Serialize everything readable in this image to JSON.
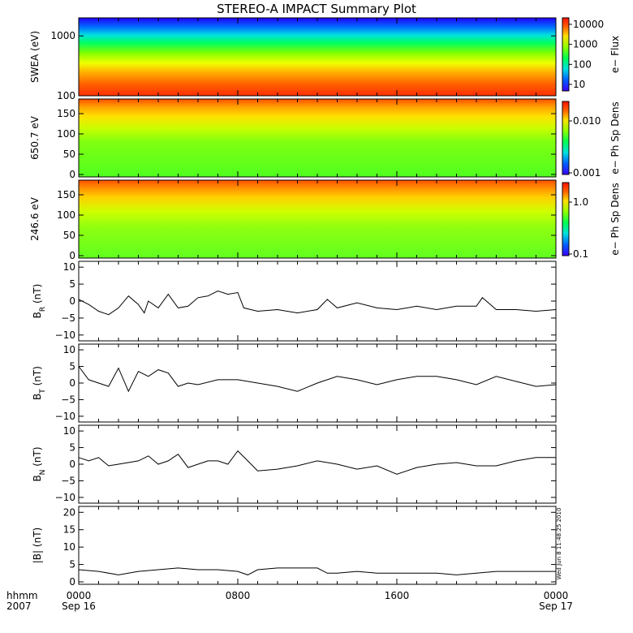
{
  "chart_data": {
    "title": "STEREO-A IMPACT Summary Plot",
    "timestamp": "Wed Jun  8 11:48:25 2010",
    "x_axis": {
      "ticks": [
        {
          "label": "0000",
          "sub": "Sep 16",
          "hour": 0
        },
        {
          "label": "0800",
          "sub": "",
          "hour": 8
        },
        {
          "label": "1600",
          "sub": "",
          "hour": 16
        },
        {
          "label": "0000",
          "sub": "Sep 17",
          "hour": 24
        }
      ],
      "left_label_1": "hhmm",
      "left_label_2": "2007",
      "range_hours": [
        0,
        24
      ]
    },
    "panels": [
      {
        "id": "swea",
        "type": "heatmap",
        "ylabel": "SWEA (eV)",
        "yscale": "log",
        "ylim": [
          100,
          2000
        ],
        "yticks": [
          "1000",
          "100"
        ],
        "colorbar_label": "e−  Flux",
        "colorbar_ticks": [
          "10000",
          "1000",
          "100",
          "10"
        ]
      },
      {
        "id": "pad650",
        "type": "heatmap",
        "ylabel": "650.7 eV",
        "ylim": [
          0,
          180
        ],
        "yticks": [
          "150",
          "100",
          "50",
          "0"
        ],
        "colorbar_label": "e−  Ph Sp Dens",
        "colorbar_ticks": [
          "0.010",
          "0.001"
        ]
      },
      {
        "id": "pad246",
        "type": "heatmap",
        "ylabel": "246.6 eV",
        "ylim": [
          0,
          180
        ],
        "yticks": [
          "150",
          "100",
          "50",
          "0"
        ],
        "colorbar_label": "e−  Ph Sp Dens",
        "colorbar_ticks": [
          "1.0",
          "0.1"
        ]
      },
      {
        "id": "br",
        "type": "line",
        "ylabel_main": "B",
        "ylabel_sub": "R",
        "ylabel_unit": " (nT)",
        "ylim": [
          -11,
          11
        ],
        "yticks": [
          "10",
          "5",
          "0",
          "−5",
          "−10"
        ],
        "series": [
          {
            "hour": 0,
            "v": 0.5
          },
          {
            "hour": 0.5,
            "v": -1
          },
          {
            "hour": 1,
            "v": -3
          },
          {
            "hour": 1.5,
            "v": -4
          },
          {
            "hour": 2,
            "v": -2
          },
          {
            "hour": 2.5,
            "v": 1.5
          },
          {
            "hour": 3,
            "v": -1
          },
          {
            "hour": 3.3,
            "v": -3.5
          },
          {
            "hour": 3.5,
            "v": 0
          },
          {
            "hour": 4,
            "v": -2
          },
          {
            "hour": 4.5,
            "v": 2
          },
          {
            "hour": 5,
            "v": -2
          },
          {
            "hour": 5.5,
            "v": -1.5
          },
          {
            "hour": 6,
            "v": 1
          },
          {
            "hour": 6.5,
            "v": 1.5
          },
          {
            "hour": 7,
            "v": 3
          },
          {
            "hour": 7.5,
            "v": 2
          },
          {
            "hour": 8,
            "v": 2.5
          },
          {
            "hour": 8.3,
            "v": -2
          },
          {
            "hour": 9,
            "v": -3
          },
          {
            "hour": 10,
            "v": -2.5
          },
          {
            "hour": 11,
            "v": -3.5
          },
          {
            "hour": 12,
            "v": -2.5
          },
          {
            "hour": 12.5,
            "v": 0.5
          },
          {
            "hour": 13,
            "v": -2
          },
          {
            "hour": 14,
            "v": -0.5
          },
          {
            "hour": 15,
            "v": -2
          },
          {
            "hour": 16,
            "v": -2.5
          },
          {
            "hour": 17,
            "v": -1.5
          },
          {
            "hour": 18,
            "v": -2.5
          },
          {
            "hour": 19,
            "v": -1.5
          },
          {
            "hour": 20,
            "v": -1.5
          },
          {
            "hour": 20.3,
            "v": 1
          },
          {
            "hour": 21,
            "v": -2.5
          },
          {
            "hour": 22,
            "v": -2.5
          },
          {
            "hour": 23,
            "v": -3
          },
          {
            "hour": 24,
            "v": -2.5
          }
        ]
      },
      {
        "id": "bt",
        "type": "line",
        "ylabel_main": "B",
        "ylabel_sub": "T",
        "ylabel_unit": " (nT)",
        "ylim": [
          -11,
          11
        ],
        "yticks": [
          "10",
          "5",
          "0",
          "−5",
          "−10"
        ],
        "series": [
          {
            "hour": 0,
            "v": 5
          },
          {
            "hour": 0.5,
            "v": 1
          },
          {
            "hour": 1,
            "v": 0
          },
          {
            "hour": 1.5,
            "v": -1
          },
          {
            "hour": 2,
            "v": 4.5
          },
          {
            "hour": 2.5,
            "v": -2.5
          },
          {
            "hour": 3,
            "v": 3.5
          },
          {
            "hour": 3.5,
            "v": 2
          },
          {
            "hour": 4,
            "v": 4
          },
          {
            "hour": 4.5,
            "v": 3
          },
          {
            "hour": 5,
            "v": -1
          },
          {
            "hour": 5.5,
            "v": 0
          },
          {
            "hour": 6,
            "v": -0.5
          },
          {
            "hour": 7,
            "v": 1
          },
          {
            "hour": 8,
            "v": 1
          },
          {
            "hour": 9,
            "v": 0
          },
          {
            "hour": 10,
            "v": -1
          },
          {
            "hour": 11,
            "v": -2.5
          },
          {
            "hour": 12,
            "v": 0
          },
          {
            "hour": 13,
            "v": 2
          },
          {
            "hour": 14,
            "v": 1
          },
          {
            "hour": 15,
            "v": -0.5
          },
          {
            "hour": 16,
            "v": 1
          },
          {
            "hour": 17,
            "v": 2
          },
          {
            "hour": 18,
            "v": 2
          },
          {
            "hour": 19,
            "v": 1
          },
          {
            "hour": 20,
            "v": -0.5
          },
          {
            "hour": 21,
            "v": 2
          },
          {
            "hour": 22,
            "v": 0.5
          },
          {
            "hour": 23,
            "v": -1
          },
          {
            "hour": 24,
            "v": -0.5
          }
        ]
      },
      {
        "id": "bn",
        "type": "line",
        "ylabel_main": "B",
        "ylabel_sub": "N",
        "ylabel_unit": " (nT)",
        "ylim": [
          -11,
          11
        ],
        "yticks": [
          "10",
          "5",
          "0",
          "−5",
          "−10"
        ],
        "series": [
          {
            "hour": 0,
            "v": 2
          },
          {
            "hour": 0.5,
            "v": 1
          },
          {
            "hour": 1,
            "v": 2
          },
          {
            "hour": 1.5,
            "v": -0.5
          },
          {
            "hour": 2,
            "v": 0
          },
          {
            "hour": 3,
            "v": 1
          },
          {
            "hour": 3.5,
            "v": 2.5
          },
          {
            "hour": 4,
            "v": 0
          },
          {
            "hour": 4.5,
            "v": 1
          },
          {
            "hour": 5,
            "v": 3
          },
          {
            "hour": 5.5,
            "v": -1
          },
          {
            "hour": 6,
            "v": 0
          },
          {
            "hour": 6.5,
            "v": 1
          },
          {
            "hour": 7,
            "v": 1
          },
          {
            "hour": 7.5,
            "v": 0
          },
          {
            "hour": 8,
            "v": 4
          },
          {
            "hour": 8.5,
            "v": 1
          },
          {
            "hour": 9,
            "v": -2
          },
          {
            "hour": 10,
            "v": -1.5
          },
          {
            "hour": 11,
            "v": -0.5
          },
          {
            "hour": 12,
            "v": 1
          },
          {
            "hour": 13,
            "v": 0
          },
          {
            "hour": 14,
            "v": -1.5
          },
          {
            "hour": 15,
            "v": -0.5
          },
          {
            "hour": 16,
            "v": -3
          },
          {
            "hour": 17,
            "v": -1
          },
          {
            "hour": 18,
            "v": 0
          },
          {
            "hour": 19,
            "v": 0.5
          },
          {
            "hour": 20,
            "v": -0.5
          },
          {
            "hour": 21,
            "v": -0.5
          },
          {
            "hour": 22,
            "v": 1
          },
          {
            "hour": 23,
            "v": 2
          },
          {
            "hour": 24,
            "v": 2
          }
        ]
      },
      {
        "id": "bmag",
        "type": "line",
        "ylabel_main": "|B|",
        "ylabel_sub": "",
        "ylabel_unit": " (nT)",
        "ylim": [
          0,
          21
        ],
        "yticks": [
          "20",
          "15",
          "10",
          "5",
          "0"
        ],
        "series": [
          {
            "hour": 0,
            "v": 3.5
          },
          {
            "hour": 1,
            "v": 3
          },
          {
            "hour": 2,
            "v": 2
          },
          {
            "hour": 3,
            "v": 3
          },
          {
            "hour": 4,
            "v": 3.5
          },
          {
            "hour": 5,
            "v": 4
          },
          {
            "hour": 6,
            "v": 3.5
          },
          {
            "hour": 7,
            "v": 3.5
          },
          {
            "hour": 8,
            "v": 3
          },
          {
            "hour": 8.5,
            "v": 2
          },
          {
            "hour": 9,
            "v": 3.5
          },
          {
            "hour": 10,
            "v": 4
          },
          {
            "hour": 11,
            "v": 4
          },
          {
            "hour": 12,
            "v": 4
          },
          {
            "hour": 12.5,
            "v": 2.5
          },
          {
            "hour": 13,
            "v": 2.5
          },
          {
            "hour": 14,
            "v": 3
          },
          {
            "hour": 15,
            "v": 2.5
          },
          {
            "hour": 16,
            "v": 2.5
          },
          {
            "hour": 17,
            "v": 2.5
          },
          {
            "hour": 18,
            "v": 2.5
          },
          {
            "hour": 19,
            "v": 2
          },
          {
            "hour": 20,
            "v": 2.5
          },
          {
            "hour": 21,
            "v": 3
          },
          {
            "hour": 22,
            "v": 3
          },
          {
            "hour": 23,
            "v": 3
          },
          {
            "hour": 24,
            "v": 3
          }
        ]
      }
    ]
  }
}
